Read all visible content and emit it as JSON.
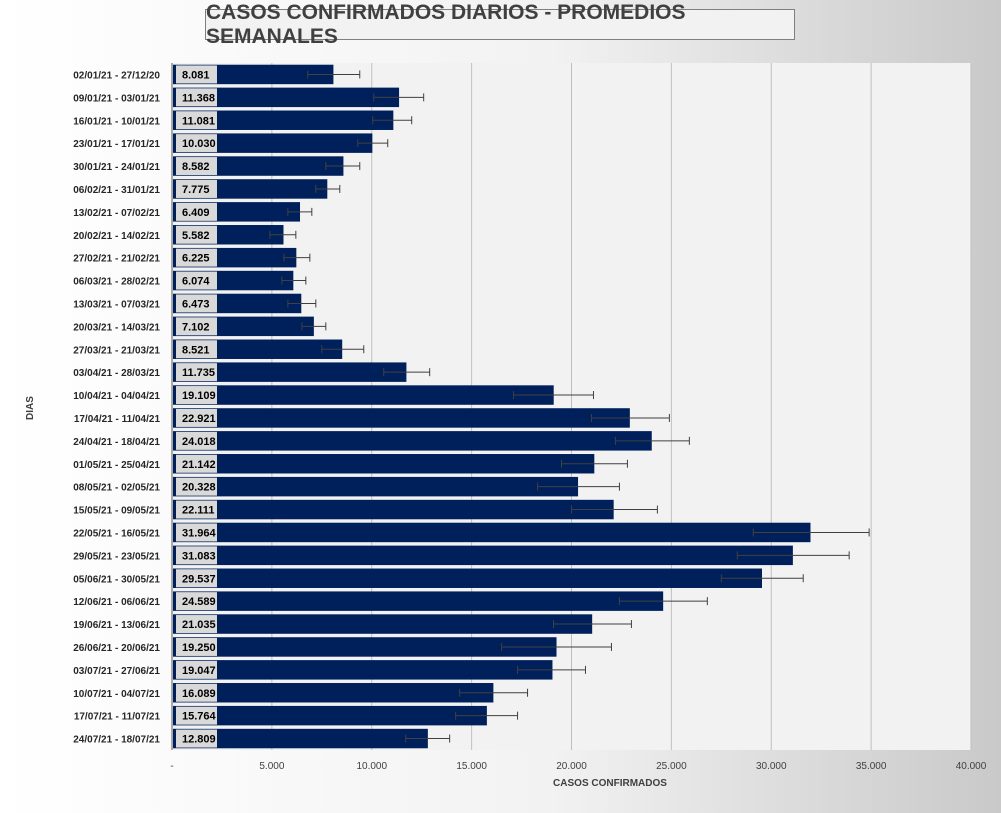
{
  "chart_data": {
    "type": "bar",
    "orientation": "horizontal",
    "title": "CASOS CONFIRMADOS DIARIOS - PROMEDIOS SEMANALES",
    "xlabel": "CASOS CONFIRMADOS",
    "ylabel": "DIAS",
    "xlim": [
      0,
      40000
    ],
    "x_ticks": [
      0,
      5000,
      10000,
      15000,
      20000,
      25000,
      30000,
      35000,
      40000
    ],
    "x_tick_labels": [
      "-",
      "5.000",
      "10.000",
      "15.000",
      "20.000",
      "25.000",
      "30.000",
      "35.000",
      "40.000"
    ],
    "grid": "vertical",
    "error_bars": true,
    "colors": {
      "bar": "#00205b",
      "plot_bg": "#f2f2f2",
      "label_bg": "#d9d9d9",
      "grid": "#bfbfbf",
      "text": "#262626"
    },
    "categories": [
      "02/01/21 - 27/12/20",
      "09/01/21 - 03/01/21",
      "16/01/21 - 10/01/21",
      "23/01/21 - 17/01/21",
      "30/01/21 - 24/01/21",
      "06/02/21 - 31/01/21",
      "13/02/21 - 07/02/21",
      "20/02/21 - 14/02/21",
      "27/02/21 - 21/02/21",
      "06/03/21 - 28/02/21",
      "13/03/21 - 07/03/21",
      "20/03/21 - 14/03/21",
      "27/03/21 - 21/03/21",
      "03/04/21 - 28/03/21",
      "10/04/21 - 04/04/21",
      "17/04/21 - 11/04/21",
      "24/04/21 - 18/04/21",
      "01/05/21 - 25/04/21",
      "08/05/21 - 02/05/21",
      "15/05/21 - 09/05/21",
      "22/05/21 - 16/05/21",
      "29/05/21 - 23/05/21",
      "05/06/21 - 30/05/21",
      "12/06/21 - 06/06/21",
      "19/06/21 - 13/06/21",
      "26/06/21 - 20/06/21",
      "03/07/21 - 27/06/21",
      "10/07/21 - 04/07/21",
      "17/07/21 - 11/07/21",
      "24/07/21 - 18/07/21"
    ],
    "values": [
      8081,
      11368,
      11081,
      10030,
      8582,
      7775,
      6409,
      5582,
      6225,
      6074,
      6473,
      7102,
      8521,
      11735,
      19109,
      22921,
      24018,
      21142,
      20328,
      22111,
      31964,
      31083,
      29537,
      24589,
      21035,
      19250,
      19047,
      16089,
      15764,
      12809
    ],
    "value_labels": [
      "8.081",
      "11.368",
      "11.081",
      "10.030",
      "8.582",
      "7.775",
      "6.409",
      "5.582",
      "6.225",
      "6.074",
      "6.473",
      "7.102",
      "8.521",
      "11.735",
      "19.109",
      "22.921",
      "24.018",
      "21.142",
      "20.328",
      "22.111",
      "31.964",
      "31.083",
      "29.537",
      "24.589",
      "21.035",
      "19.250",
      "19.047",
      "16.089",
      "15.764",
      "12.809"
    ],
    "error_low": [
      6800,
      10100,
      10050,
      9300,
      7700,
      7200,
      5800,
      4900,
      5600,
      5500,
      5800,
      6500,
      7500,
      10600,
      17100,
      21000,
      22200,
      19500,
      18300,
      20000,
      29100,
      28300,
      27500,
      22400,
      19100,
      16500,
      17300,
      14400,
      14200,
      11700
    ],
    "error_high": [
      9400,
      12600,
      12000,
      10800,
      9400,
      8400,
      7000,
      6200,
      6900,
      6700,
      7200,
      7700,
      9600,
      12900,
      21100,
      24900,
      25900,
      22800,
      22400,
      24300,
      34900,
      33900,
      31600,
      26800,
      23000,
      22000,
      20700,
      17800,
      17300,
      13900
    ]
  }
}
